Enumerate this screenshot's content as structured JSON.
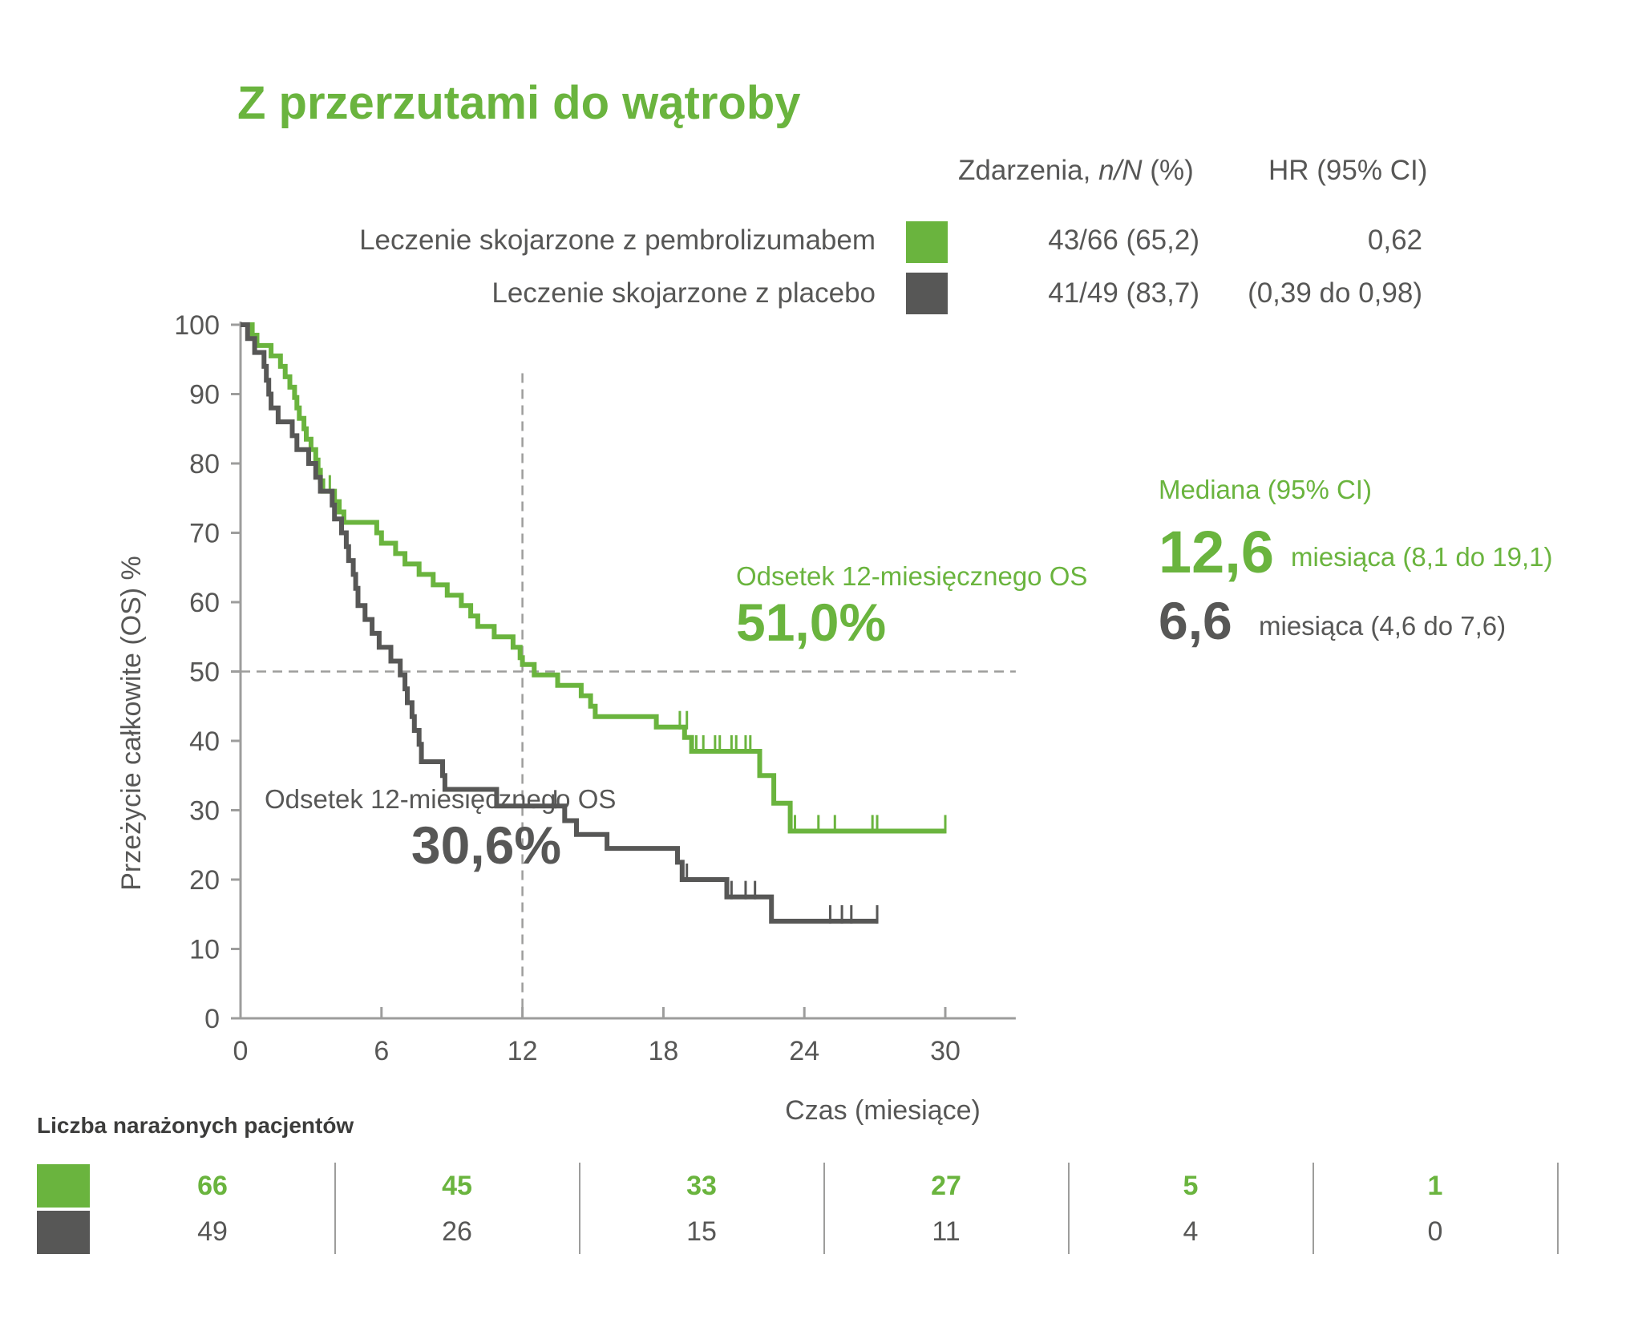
{
  "title": "Z przerzutami do wątroby",
  "table_header": {
    "events": "Zdarzenia, n/N (%)",
    "hr": "HR (95% CI)"
  },
  "legend": [
    {
      "label": "Leczenie skojarzone z pembrolizumabem",
      "events": "43/66 (65,2)",
      "hr": "0,62",
      "color": "#6ab43e"
    },
    {
      "label": "Leczenie skojarzone z placebo",
      "events": "41/49 (83,7)",
      "hr": "(0,39 do 0,98)",
      "color": "#575756"
    }
  ],
  "annotations": {
    "green_rate_label": "Odsetek 12-miesięcznego OS",
    "green_rate_value": "51,0%",
    "gray_rate_label": "Odsetek 12-miesięcznego OS",
    "gray_rate_value": "30,6%",
    "median_title": "Mediana (95% CI)",
    "green_median_value": "12,6",
    "green_median_text": "miesiąca (8,1 do 19,1)",
    "gray_median_value": "6,6",
    "gray_median_text": "miesiąca (4,6 do 7,6)"
  },
  "risk_table": {
    "title": "Liczba narażonych pacjentów",
    "pembrolizumab": [
      "66",
      "45",
      "33",
      "27",
      "5",
      "1"
    ],
    "placebo": [
      "49",
      "26",
      "15",
      "11",
      "4",
      "0"
    ]
  },
  "chart_data": {
    "type": "line",
    "xlabel": "Czas (miesiące)",
    "ylabel": "Przeżycie całkowite (OS) %",
    "xlim": [
      0,
      33
    ],
    "ylim": [
      0,
      100
    ],
    "xticks": [
      0,
      6,
      12,
      18,
      24,
      30
    ],
    "yticks": [
      0,
      10,
      20,
      30,
      40,
      50,
      60,
      70,
      80,
      90,
      100
    ],
    "reference_lines": {
      "x": 12,
      "y": 50
    },
    "series": [
      {
        "name": "Leczenie skojarzone z pembrolizumabem",
        "color": "#6ab43e",
        "points": [
          [
            0,
            100
          ],
          [
            0.5,
            98.5
          ],
          [
            0.7,
            97
          ],
          [
            1.3,
            95.5
          ],
          [
            1.7,
            94
          ],
          [
            1.9,
            92.5
          ],
          [
            2.1,
            91
          ],
          [
            2.3,
            89.5
          ],
          [
            2.4,
            88
          ],
          [
            2.5,
            86.5
          ],
          [
            2.7,
            85
          ],
          [
            2.8,
            83.5
          ],
          [
            3.0,
            82
          ],
          [
            3.2,
            80.5
          ],
          [
            3.3,
            79
          ],
          [
            3.4,
            77.5
          ],
          [
            3.5,
            76
          ],
          [
            4.0,
            74.5
          ],
          [
            4.2,
            73
          ],
          [
            4.4,
            71.5
          ],
          [
            5.8,
            70
          ],
          [
            6.0,
            68.5
          ],
          [
            6.6,
            67
          ],
          [
            7.0,
            65.5
          ],
          [
            7.6,
            64
          ],
          [
            8.2,
            62.5
          ],
          [
            8.8,
            61
          ],
          [
            9.4,
            59.5
          ],
          [
            9.8,
            58
          ],
          [
            10.1,
            56.5
          ],
          [
            10.8,
            55
          ],
          [
            11.6,
            53.5
          ],
          [
            11.9,
            52
          ],
          [
            12.0,
            51.0
          ],
          [
            12.5,
            49.5
          ],
          [
            13.5,
            48
          ],
          [
            14.5,
            46.5
          ],
          [
            14.9,
            45
          ],
          [
            15.1,
            43.5
          ],
          [
            17.7,
            42
          ],
          [
            18.9,
            40.5
          ],
          [
            19.2,
            38.5
          ],
          [
            22.1,
            35
          ],
          [
            22.7,
            31
          ],
          [
            23.4,
            27
          ],
          [
            30.0,
            27
          ]
        ],
        "censored": [
          [
            3.8,
            76
          ],
          [
            18.7,
            42
          ],
          [
            19.0,
            42
          ],
          [
            19.4,
            38.5
          ],
          [
            19.7,
            38.5
          ],
          [
            20.2,
            38.5
          ],
          [
            20.4,
            38.5
          ],
          [
            20.9,
            38.5
          ],
          [
            21.1,
            38.5
          ],
          [
            21.5,
            38.5
          ],
          [
            21.7,
            38.5
          ],
          [
            23.6,
            27
          ],
          [
            24.6,
            27
          ],
          [
            25.3,
            27
          ],
          [
            26.9,
            27
          ],
          [
            27.1,
            27
          ],
          [
            30.0,
            27
          ]
        ]
      },
      {
        "name": "Leczenie skojarzone z placebo",
        "color": "#575756",
        "points": [
          [
            0,
            100
          ],
          [
            0.3,
            98
          ],
          [
            0.6,
            96
          ],
          [
            1.0,
            94
          ],
          [
            1.1,
            92
          ],
          [
            1.2,
            90
          ],
          [
            1.3,
            88
          ],
          [
            1.6,
            86
          ],
          [
            2.2,
            84
          ],
          [
            2.4,
            82
          ],
          [
            2.9,
            80
          ],
          [
            3.2,
            78
          ],
          [
            3.4,
            76
          ],
          [
            3.9,
            74
          ],
          [
            4.0,
            72
          ],
          [
            4.3,
            70
          ],
          [
            4.5,
            68
          ],
          [
            4.6,
            66
          ],
          [
            4.8,
            64
          ],
          [
            4.9,
            62
          ],
          [
            5.0,
            59.5
          ],
          [
            5.3,
            57.5
          ],
          [
            5.6,
            55.5
          ],
          [
            5.9,
            53.5
          ],
          [
            6.4,
            51.5
          ],
          [
            6.8,
            49.5
          ],
          [
            7.0,
            47.5
          ],
          [
            7.1,
            45.5
          ],
          [
            7.3,
            43.5
          ],
          [
            7.4,
            41.5
          ],
          [
            7.6,
            39.5
          ],
          [
            7.7,
            37
          ],
          [
            8.6,
            35
          ],
          [
            8.7,
            33
          ],
          [
            10.9,
            30.6
          ],
          [
            13.8,
            28.5
          ],
          [
            14.3,
            26.5
          ],
          [
            15.6,
            24.5
          ],
          [
            18.6,
            22.5
          ],
          [
            18.8,
            20
          ],
          [
            20.7,
            17.5
          ],
          [
            22.6,
            14
          ],
          [
            27.1,
            14
          ]
        ],
        "censored": [
          [
            13.4,
            30.6
          ],
          [
            19.0,
            20
          ],
          [
            20.9,
            17.5
          ],
          [
            21.5,
            17.5
          ],
          [
            21.9,
            17.5
          ],
          [
            25.1,
            14
          ],
          [
            25.6,
            14
          ],
          [
            26.0,
            14
          ],
          [
            27.1,
            14
          ]
        ]
      }
    ]
  }
}
